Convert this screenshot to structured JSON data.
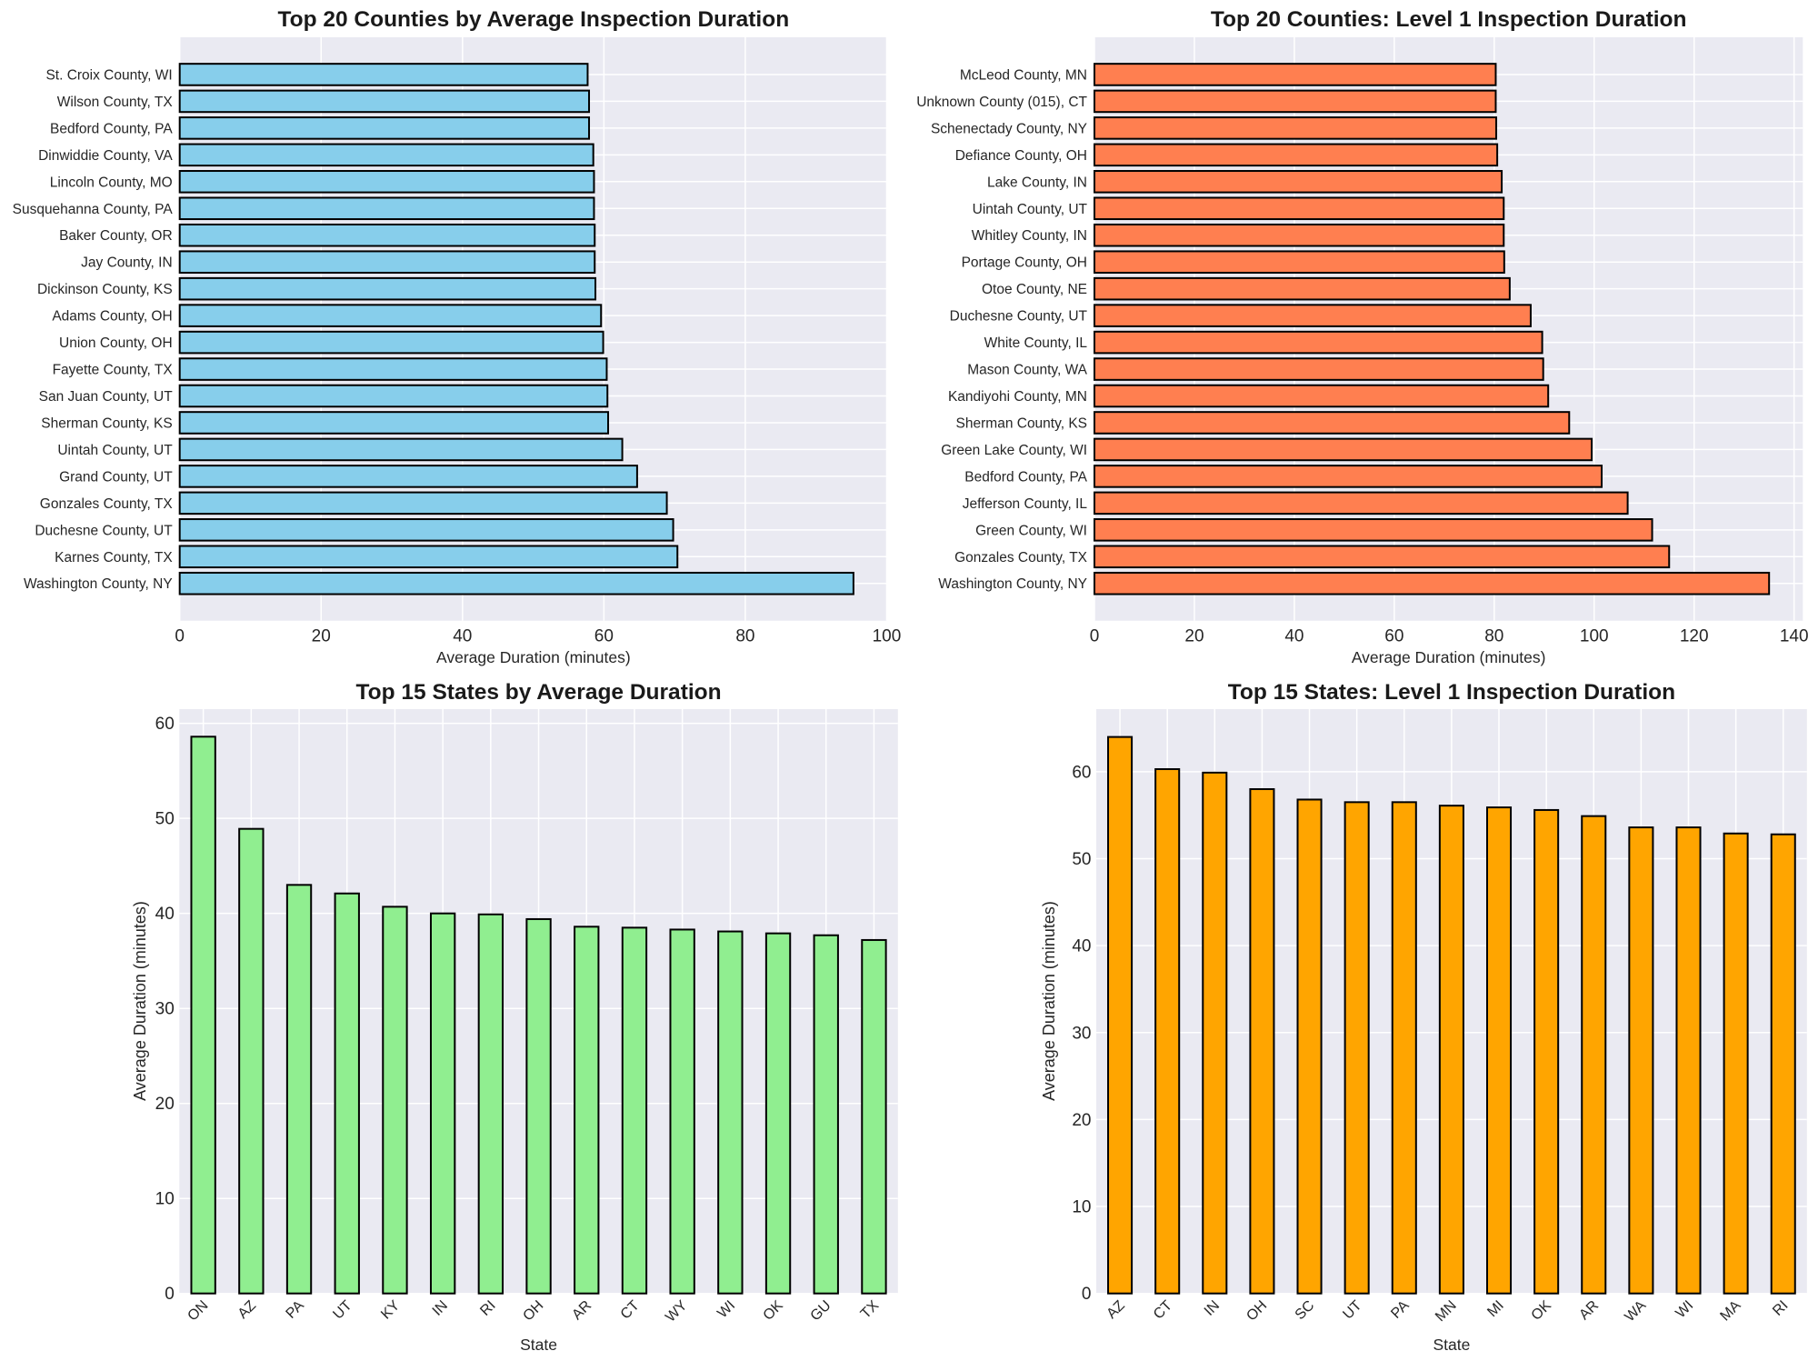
{
  "figure": {
    "background": "#ffffff",
    "plot_background": "#eaeaf2",
    "grid_color": "#ffffff",
    "text_color": "#262626",
    "bar_edge_color": "#000000"
  },
  "chart_data": [
    {
      "id": "counties-avg",
      "type": "barh",
      "title": "Top 20 Counties by Average Inspection Duration",
      "xlabel": "Average Duration (minutes)",
      "bar_color": "#87ceeb",
      "xlim": [
        0,
        100.07
      ],
      "xticks": [
        0,
        20,
        40,
        60,
        80,
        100
      ],
      "grid": true,
      "categories": [
        "St. Croix County, WI",
        "Wilson County, TX",
        "Bedford County, PA",
        "Dinwiddie County, VA",
        "Lincoln County, MO",
        "Susquehanna County, PA",
        "Baker County, OR",
        "Jay County, IN",
        "Dickinson County, KS",
        "Adams County, OH",
        "Union County, OH",
        "Fayette County, TX",
        "San Juan County, UT",
        "Sherman County, KS",
        "Uintah County, UT",
        "Grand County, UT",
        "Gonzales County, TX",
        "Duchesne County, UT",
        "Karnes County, TX",
        "Washington County, NY"
      ],
      "values": [
        57.7,
        57.9,
        57.9,
        58.5,
        58.6,
        58.6,
        58.7,
        58.7,
        58.8,
        59.6,
        59.9,
        60.4,
        60.5,
        60.6,
        62.6,
        64.7,
        68.9,
        69.8,
        70.4,
        95.3
      ]
    },
    {
      "id": "counties-level1",
      "type": "barh",
      "title": "Top 20 Counties: Level 1 Inspection Duration",
      "xlabel": "Average Duration (minutes)",
      "bar_color": "#ff7f50",
      "xlim": [
        0,
        141.75
      ],
      "xticks": [
        0,
        20,
        40,
        60,
        80,
        100,
        120,
        140
      ],
      "grid": true,
      "categories": [
        "McLeod County, MN",
        "Unknown County (015), CT",
        "Schenectady County, NY",
        "Defiance County, OH",
        "Lake County, IN",
        "Uintah County, UT",
        "Whitley County, IN",
        "Portage County, OH",
        "Otoe County, NE",
        "Duchesne County, UT",
        "White County, IL",
        "Mason County, WA",
        "Kandiyohi County, MN",
        "Sherman County, KS",
        "Green Lake County, WI",
        "Bedford County, PA",
        "Jefferson County, IL",
        "Green County, WI",
        "Gonzales County, TX",
        "Washington County, NY"
      ],
      "values": [
        80.3,
        80.3,
        80.4,
        80.6,
        81.5,
        81.9,
        81.9,
        82.0,
        83.1,
        87.3,
        89.6,
        89.8,
        90.8,
        95.0,
        99.5,
        101.5,
        106.7,
        111.6,
        115.0,
        135.0
      ]
    },
    {
      "id": "states-avg",
      "type": "bar",
      "title": "Top 15 States by Average Duration",
      "xlabel": "State",
      "ylabel": "Average Duration (minutes)",
      "bar_color": "#90ee90",
      "ylim": [
        0,
        61.5
      ],
      "yticks": [
        0,
        10,
        20,
        30,
        40,
        50,
        60
      ],
      "grid": true,
      "categories": [
        "ON",
        "AZ",
        "PA",
        "UT",
        "KY",
        "IN",
        "RI",
        "OH",
        "AR",
        "CT",
        "WY",
        "WI",
        "OK",
        "GU",
        "TX"
      ],
      "values": [
        58.6,
        48.9,
        43.0,
        42.1,
        40.7,
        40.0,
        39.9,
        39.4,
        38.6,
        38.5,
        38.3,
        38.1,
        37.9,
        37.7,
        37.2
      ]
    },
    {
      "id": "states-level1",
      "type": "bar",
      "title": "Top 15 States: Level 1 Inspection Duration",
      "xlabel": "State",
      "ylabel": "Average Duration (minutes)",
      "bar_color": "#ffa500",
      "ylim": [
        0,
        67.2
      ],
      "yticks": [
        0,
        10,
        20,
        30,
        40,
        50,
        60
      ],
      "grid": true,
      "categories": [
        "AZ",
        "CT",
        "IN",
        "OH",
        "SC",
        "UT",
        "PA",
        "MN",
        "MI",
        "OK",
        "AR",
        "WA",
        "WI",
        "MA",
        "RI"
      ],
      "values": [
        64.0,
        60.3,
        59.9,
        58.0,
        56.8,
        56.5,
        56.5,
        56.1,
        55.9,
        55.6,
        54.9,
        53.6,
        53.6,
        52.9,
        52.8
      ]
    }
  ]
}
